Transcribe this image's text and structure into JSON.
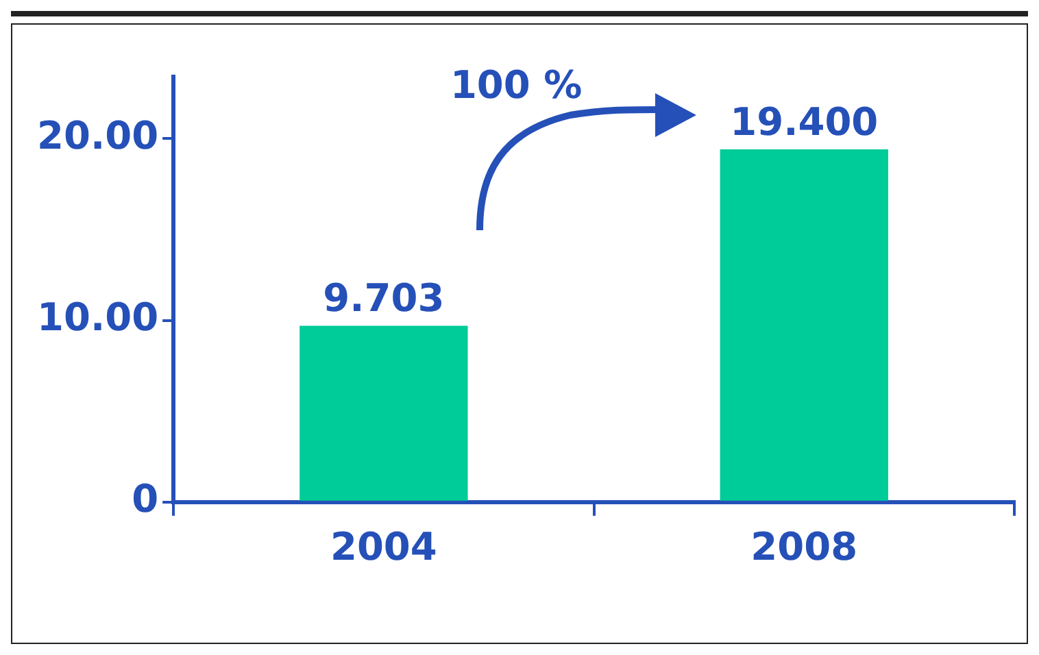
{
  "chart_data": {
    "type": "bar",
    "categories": [
      "2004",
      "2008"
    ],
    "values": [
      9.703,
      19.4
    ],
    "value_labels": [
      "9.703",
      "19.400"
    ],
    "color": "#00cc99",
    "ylim": [
      0,
      23.4
    ],
    "yticks": [
      0,
      {
        "value": 10,
        "label": "10.00"
      },
      {
        "value": 20,
        "label": "20.00"
      }
    ],
    "grid": false,
    "legend": false,
    "annotations": [
      "100 %"
    ]
  }
}
